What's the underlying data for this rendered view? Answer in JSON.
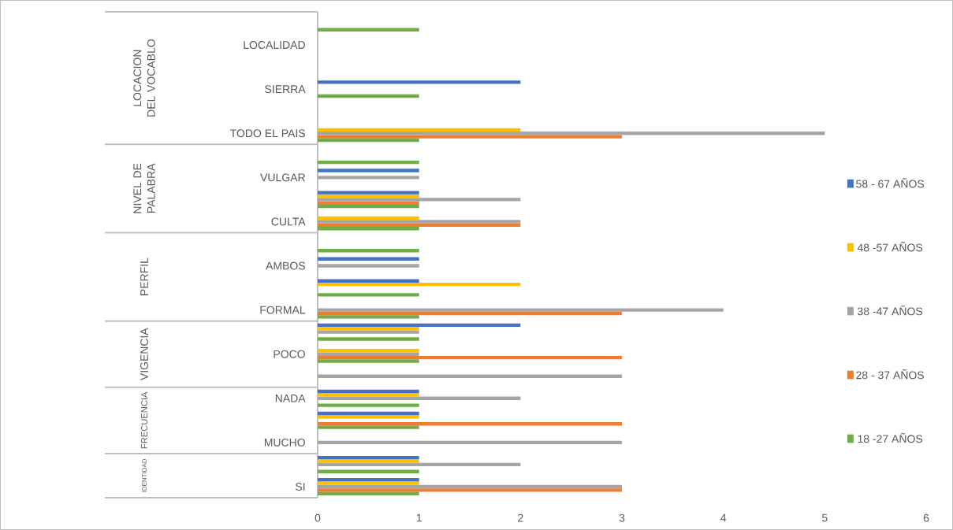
{
  "chart_data": {
    "type": "bar",
    "orientation": "horizontal",
    "categories": [
      null,
      "LOCALIDAD",
      null,
      "SIERRA",
      null,
      "TODO EL PAIS",
      null,
      "VULGAR",
      null,
      "CULTA",
      null,
      "AMBOS",
      null,
      "FORMAL",
      null,
      "POCO",
      null,
      "NADA",
      null,
      "MUCHO",
      null,
      "SI"
    ],
    "series": [
      {
        "name": "18 -27 AÑOS",
        "color": "#70ad47",
        "values": [
          1,
          null,
          null,
          1,
          null,
          1,
          1,
          null,
          1,
          1,
          1,
          null,
          1,
          1,
          1,
          1,
          null,
          1,
          1,
          null,
          1,
          1
        ]
      },
      {
        "name": "28 - 37 AÑOS",
        "color": "#ed7d31",
        "values": [
          null,
          null,
          null,
          null,
          null,
          3,
          null,
          null,
          1,
          2,
          null,
          null,
          null,
          3,
          null,
          3,
          null,
          null,
          3,
          null,
          null,
          3
        ]
      },
      {
        "name": "38 -47 AÑOS",
        "color": "#a5a5a5",
        "values": [
          null,
          null,
          null,
          null,
          null,
          5,
          null,
          1,
          2,
          2,
          null,
          1,
          null,
          4,
          1,
          1,
          3,
          2,
          null,
          3,
          2,
          3
        ]
      },
      {
        "name": "48 -57 AÑOS",
        "color": "#ffc000",
        "values": [
          null,
          null,
          null,
          null,
          null,
          2,
          null,
          null,
          1,
          1,
          null,
          null,
          2,
          null,
          1,
          1,
          null,
          1,
          1,
          null,
          1,
          1
        ]
      },
      {
        "name": "58 - 67 AÑOS",
        "color": "#4472c4",
        "values": [
          null,
          null,
          null,
          2,
          null,
          null,
          null,
          1,
          1,
          null,
          null,
          1,
          1,
          null,
          2,
          null,
          null,
          1,
          1,
          null,
          1,
          1
        ]
      }
    ],
    "xlim": [
      0,
      6
    ],
    "xticks": [
      0,
      1,
      2,
      3,
      4,
      5,
      6
    ],
    "legend": "right",
    "annotations": [
      "LOCACION DEL VOCABLO",
      "NIVEL DE PALABRA",
      "PERFIL",
      "VIGENCIA",
      "FRECUENCIA",
      "IDENTIDAD"
    ]
  }
}
